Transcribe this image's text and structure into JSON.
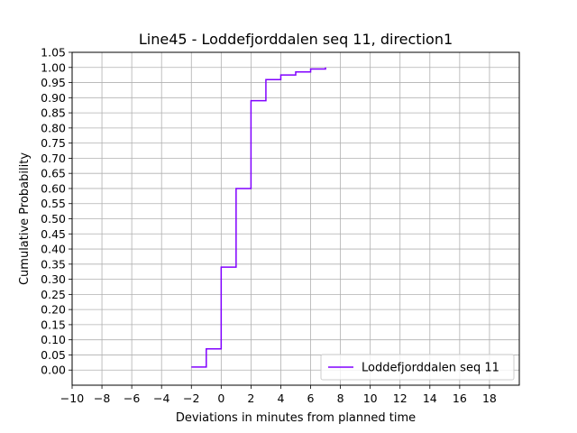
{
  "chart_data": {
    "type": "line",
    "step": "post",
    "title": "Line45 - Loddefjorddalen seq 11, direction1",
    "xlabel": "Deviations in minutes from planned time",
    "ylabel": "Cumulative Probability",
    "xlim": [
      -10,
      20
    ],
    "ylim": [
      -0.05,
      1.05
    ],
    "xticks": [
      -10,
      -8,
      -6,
      -4,
      -2,
      0,
      2,
      4,
      6,
      8,
      10,
      12,
      14,
      16,
      18
    ],
    "xtick_labels": [
      "−10",
      "−8",
      "−6",
      "−4",
      "−2",
      "0",
      "2",
      "4",
      "6",
      "8",
      "10",
      "12",
      "14",
      "16",
      "18"
    ],
    "yticks": [
      0.0,
      0.05,
      0.1,
      0.15,
      0.2,
      0.25,
      0.3,
      0.35,
      0.4,
      0.45,
      0.5,
      0.55,
      0.6,
      0.65,
      0.7,
      0.75,
      0.8,
      0.85,
      0.9,
      0.95,
      1.0,
      1.05
    ],
    "ytick_labels": [
      "0.00",
      "0.05",
      "0.10",
      "0.15",
      "0.20",
      "0.25",
      "0.30",
      "0.35",
      "0.40",
      "0.45",
      "0.50",
      "0.55",
      "0.60",
      "0.65",
      "0.70",
      "0.75",
      "0.80",
      "0.85",
      "0.90",
      "0.95",
      "1.00",
      "1.05"
    ],
    "grid": true,
    "legend_position": "lower-right",
    "series": [
      {
        "name": "Loddefjorddalen seq 11",
        "color": "#8000ff",
        "x": [
          -2,
          -1,
          0,
          1,
          2,
          3,
          4,
          5,
          6,
          7
        ],
        "y": [
          0.01,
          0.07,
          0.34,
          0.6,
          0.89,
          0.96,
          0.975,
          0.985,
          0.995,
          1.0
        ]
      }
    ]
  }
}
